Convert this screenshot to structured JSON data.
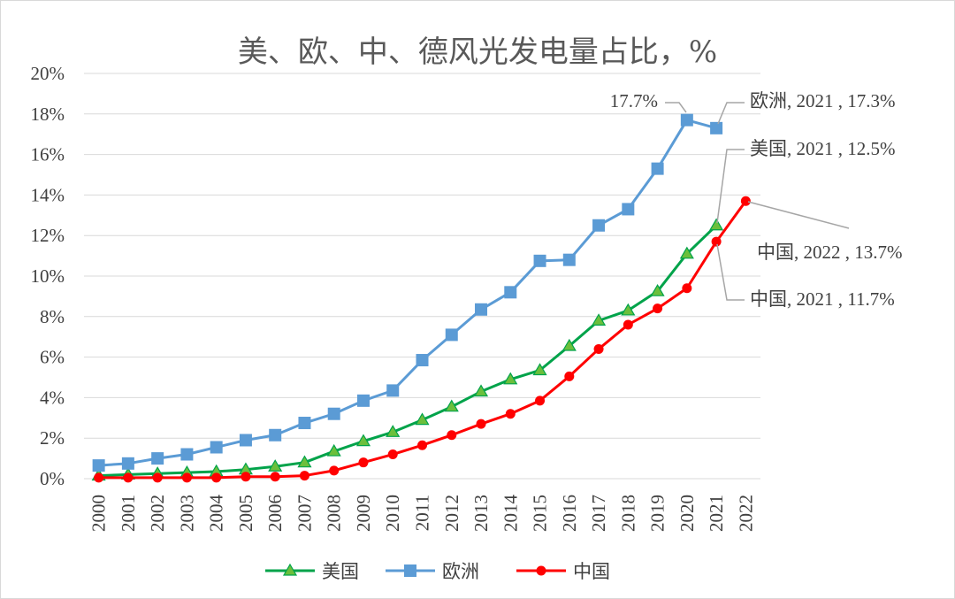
{
  "chart_data": {
    "type": "line",
    "title": "美、欧、中、德风光发电量占比，%",
    "xlabel": "",
    "ylabel": "",
    "ylim": [
      0,
      20
    ],
    "y_ticks": [
      "0%",
      "2%",
      "4%",
      "6%",
      "8%",
      "10%",
      "12%",
      "14%",
      "16%",
      "18%",
      "20%"
    ],
    "grid": true,
    "legend_position": "bottom",
    "categories": [
      "2000",
      "2001",
      "2002",
      "2003",
      "2004",
      "2005",
      "2006",
      "2007",
      "2008",
      "2009",
      "2010",
      "2011",
      "2012",
      "2013",
      "2014",
      "2015",
      "2016",
      "2017",
      "2018",
      "2019",
      "2020",
      "2021",
      "2022"
    ],
    "series": [
      {
        "name": "美国",
        "color": "#00a34a",
        "marker": "triangle",
        "values": [
          0.15,
          0.2,
          0.25,
          0.3,
          0.35,
          0.45,
          0.6,
          0.8,
          1.35,
          1.85,
          2.3,
          2.9,
          3.55,
          4.3,
          4.9,
          5.35,
          6.55,
          7.8,
          8.3,
          9.25,
          11.1,
          12.5,
          null
        ]
      },
      {
        "name": "欧洲",
        "color": "#5b9bd5",
        "marker": "square",
        "values": [
          0.65,
          0.75,
          1.0,
          1.2,
          1.55,
          1.9,
          2.15,
          2.75,
          3.2,
          3.85,
          4.35,
          5.85,
          7.1,
          8.35,
          9.2,
          10.75,
          10.8,
          12.5,
          13.3,
          15.3,
          17.7,
          17.3,
          null
        ]
      },
      {
        "name": "中国",
        "color": "#ff0000",
        "marker": "circle",
        "values": [
          0.05,
          0.05,
          0.05,
          0.05,
          0.05,
          0.1,
          0.1,
          0.15,
          0.4,
          0.8,
          1.2,
          1.65,
          2.15,
          2.7,
          3.2,
          3.85,
          5.05,
          6.4,
          7.6,
          8.4,
          9.4,
          11.7,
          13.7
        ]
      }
    ],
    "annotations": [
      {
        "text": "17.7%",
        "series": "欧洲",
        "category": "2020"
      },
      {
        "text": "欧洲, 2021 , 17.3%",
        "series": "欧洲",
        "category": "2021"
      },
      {
        "text": "美国, 2021 , 12.5%",
        "series": "美国",
        "category": "2021"
      },
      {
        "text": "中国, 2022 , 13.7%",
        "series": "中国",
        "category": "2022"
      },
      {
        "text": "中国, 2021 , 11.7%",
        "series": "中国",
        "category": "2021"
      }
    ]
  }
}
